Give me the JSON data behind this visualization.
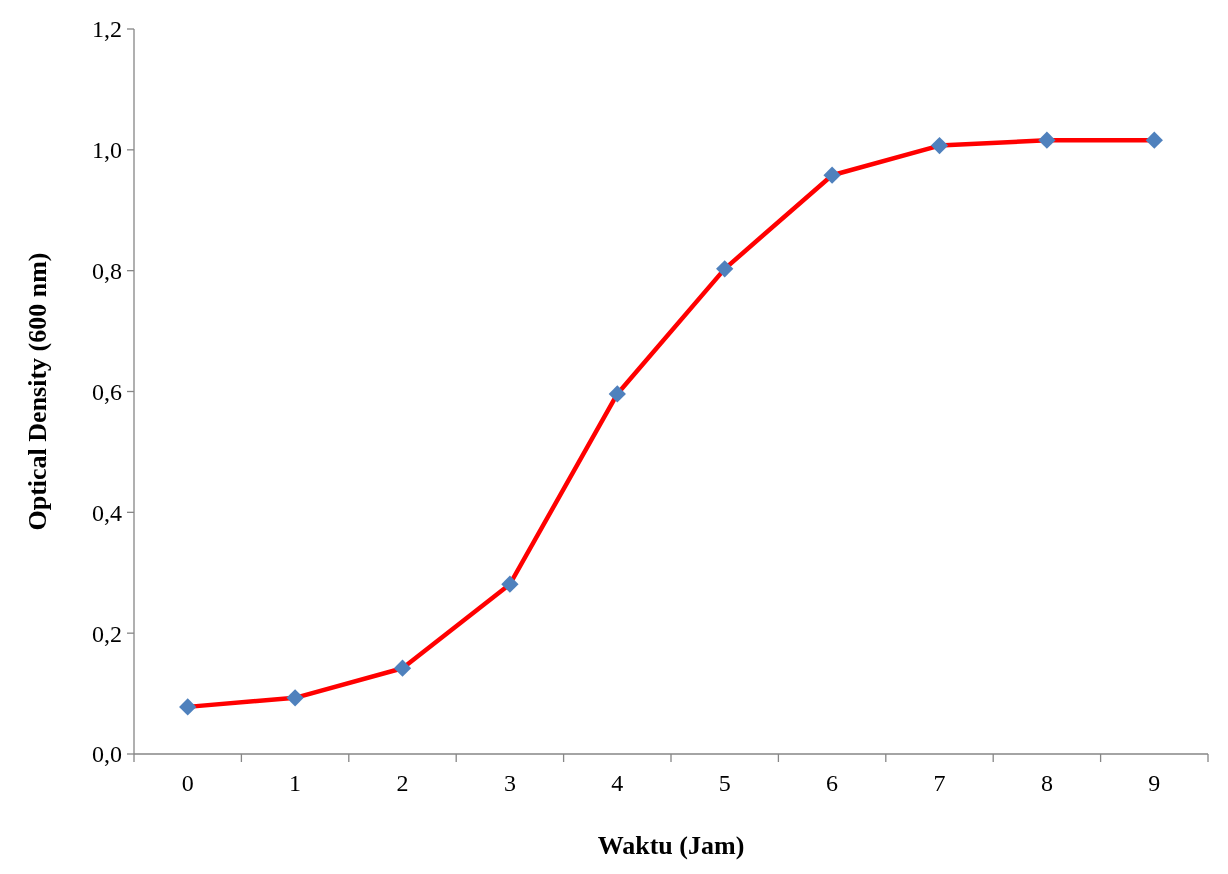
{
  "chart_data": {
    "type": "line",
    "xlabel": "Waktu (Jam)",
    "ylabel": "Optical Density (600 nm)",
    "categories": [
      "0",
      "1",
      "2",
      "3",
      "4",
      "5",
      "6",
      "7",
      "8",
      "9"
    ],
    "series": [
      {
        "color": "#ff0000",
        "values": [
          0.078,
          0.093,
          0.142,
          0.281,
          0.596,
          0.803,
          0.958,
          1.007,
          1.016,
          1.016
        ]
      }
    ],
    "ylim": [
      0,
      1.2
    ],
    "yticks": [
      {
        "value": 0,
        "label": "0,0"
      },
      {
        "value": 0.2,
        "label": "0,2"
      },
      {
        "value": 0.4,
        "label": "0,4"
      },
      {
        "value": 0.6,
        "label": "0,6"
      },
      {
        "value": 0.8,
        "label": "0,8"
      },
      {
        "value": 1,
        "label": "1,0"
      },
      {
        "value": 1.2,
        "label": "1,2"
      }
    ],
    "marker": "diamond",
    "grid": false
  }
}
